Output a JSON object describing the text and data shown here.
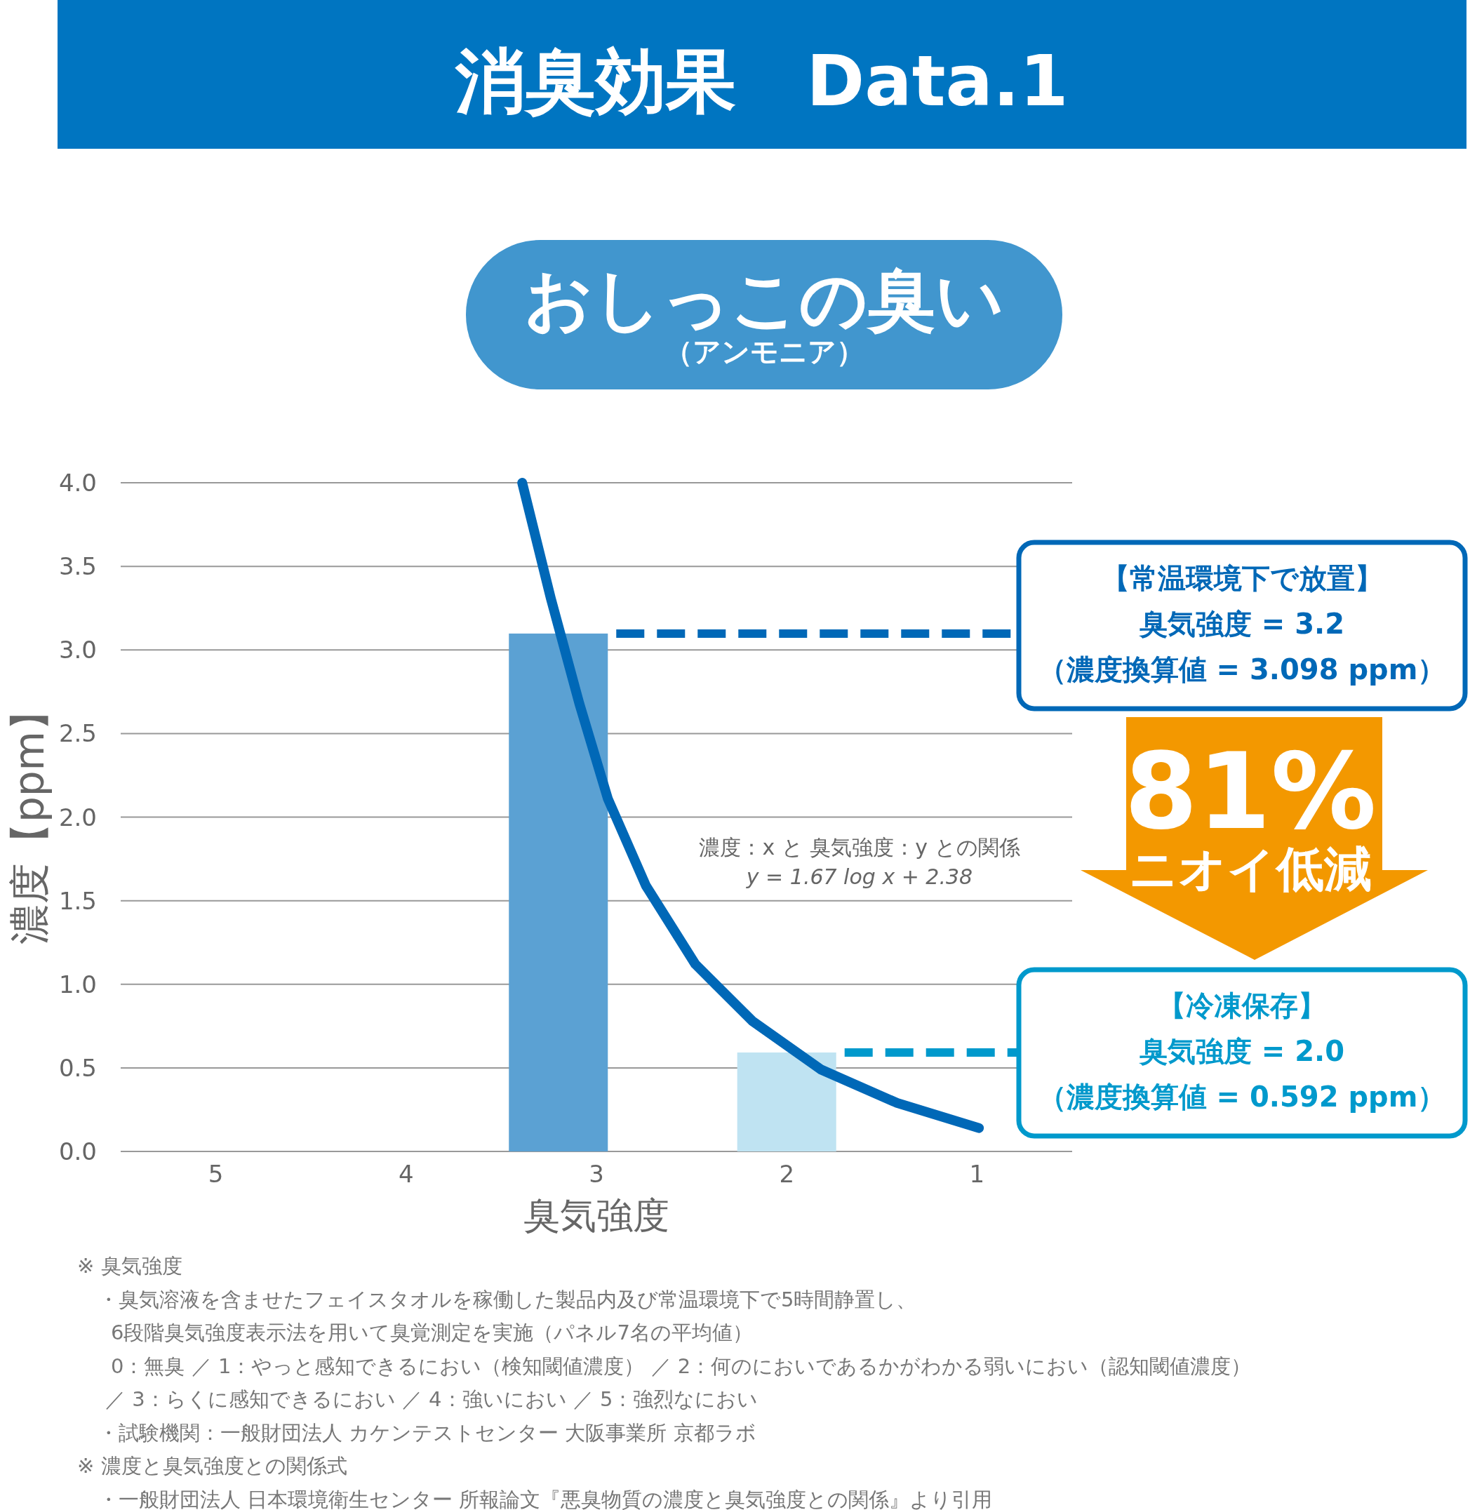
{
  "chart_data": {
    "type": "bar",
    "title": "消臭効果　Data.1",
    "subtitle": "おしっこの臭い",
    "xlabel": "臭気強度",
    "ylabel": "濃度【ppm】",
    "xlim": [
      5.5,
      0.5
    ],
    "xticks": [
      5,
      4,
      3,
      2,
      1
    ],
    "ylim": [
      0,
      4
    ],
    "yticks": [
      {
        "value": 0,
        "label": "0.0"
      },
      {
        "value": 0.5,
        "label": "0.5"
      },
      {
        "value": 1,
        "label": "1.0"
      },
      {
        "value": 1.5,
        "label": "1.5"
      },
      {
        "value": 2,
        "label": "2.0"
      },
      {
        "value": 2.5,
        "label": "2.5"
      },
      {
        "value": 3,
        "label": "3.0"
      },
      {
        "value": 3.5,
        "label": "3.5"
      },
      {
        "value": 4,
        "label": "4.0"
      }
    ],
    "grid": "y",
    "series": [
      {
        "x": [
          3.2,
          2.0
        ],
        "values": [
          3.098,
          0.592
        ],
        "colors": [
          "#5ba1d3",
          "#bfe3f2"
        ]
      },
      {
        "type": "line",
        "color": "#0068b7",
        "x": [
          3.39,
          3.24,
          3.09,
          2.94,
          2.74,
          2.48,
          2.18,
          1.82,
          1.42,
          0.99
        ],
        "values": [
          4.0,
          3.31,
          2.68,
          2.11,
          1.59,
          1.12,
          0.78,
          0.49,
          0.29,
          0.14
        ]
      }
    ],
    "ref_lines": [
      {
        "axis": "y",
        "value": 3.098,
        "color": "#0068b7",
        "line_style": "dashed"
      },
      {
        "axis": "y",
        "value": 0.592,
        "color": "#0099cc",
        "line_style": "dashed"
      }
    ],
    "annotations": [
      "（アンモニア）",
      "濃度：x と 臭気強度：y との関係",
      "y = 1.67 log x + 2.38",
      "【常温環境下で放置】",
      "臭気強度 = 3.2",
      "（濃度換算値 = 3.098 ppm）",
      "81%",
      "ニオイ低減",
      "【冷凍保存】",
      "臭気強度 = 2.0",
      "（濃度換算値 = 0.592 ppm）",
      "※ 臭気強度",
      "・臭気溶液を含ませたフェイスタオルを稼働した製品内及び常温環境下で5時間静置し、",
      "6段階臭気強度表示法を用いて臭覚測定を実施（パネル7名の平均値）",
      "0：無臭 ／ 1：やっと感知できるにおい（検知閾値濃度） ／ 2：何のにおいであるかがわかる弱いにおい（認知閾値濃度）",
      "／ 3：らくに感知できるにおい ／ 4：強いにおい ／ 5：強烈なにおい",
      "・試験機関：一般財団法人 カケンテストセンター 大阪事業所 京都ラボ",
      "※ 濃度と臭気強度との関係式",
      "・一般財団法人 日本環境衛生センター 所報論文『悪臭物質の濃度と臭気強度との関係』より引用"
    ]
  }
}
